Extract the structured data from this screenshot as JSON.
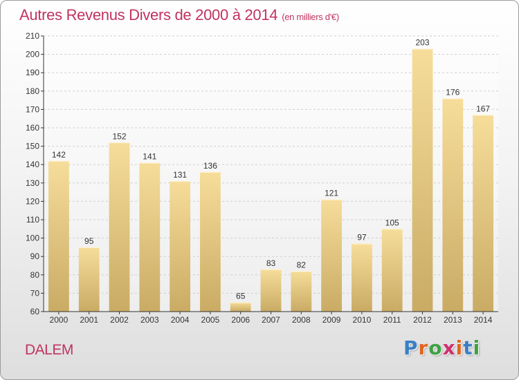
{
  "header": {
    "title": "Autres Revenus Divers de 2000 à 2014",
    "unit": "(en milliers d'€)"
  },
  "footer": {
    "place": "DALEM",
    "logo_letters": [
      "P",
      "r",
      "o",
      "x",
      "i",
      "t",
      "i"
    ],
    "logo_colors": [
      "#3b7fc4",
      "#e0641f",
      "#3fa142",
      "#d12f6f",
      "#e0641f",
      "#3b7fc4",
      "#3fa142"
    ]
  },
  "colors": {
    "bar_light": "#f6dd9a",
    "bar_dark": "#c9ab64",
    "axis": "#333333",
    "grid": "#cfcfcf",
    "accent": "#c0335f"
  },
  "chart_data": {
    "type": "bar",
    "categories": [
      "2000",
      "2001",
      "2002",
      "2003",
      "2004",
      "2005",
      "2006",
      "2007",
      "2008",
      "2009",
      "2010",
      "2011",
      "2012",
      "2013",
      "2014"
    ],
    "values": [
      142,
      95,
      152,
      141,
      131,
      136,
      65,
      83,
      82,
      121,
      97,
      105,
      203,
      176,
      167
    ],
    "title": "Autres Revenus Divers de 2000 à 2014",
    "xlabel": "",
    "ylabel": "",
    "ylim": [
      60,
      210
    ],
    "yticks": [
      60,
      70,
      80,
      90,
      100,
      110,
      120,
      130,
      140,
      150,
      160,
      170,
      180,
      190,
      200,
      210
    ],
    "grid": true,
    "legend": "none",
    "data_labels": true
  }
}
